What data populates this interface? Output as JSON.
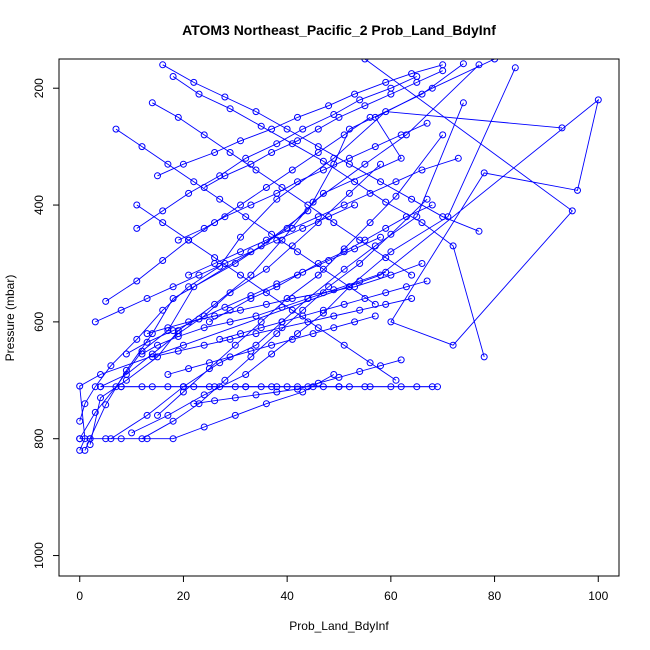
{
  "chart_data": {
    "type": "line",
    "title": "ATOM3 Northeast_Pacific_2 Prob_Land_BdyInf",
    "xlabel": "Prob_Land_BdyInf",
    "ylabel": "Pressure (mbar)",
    "xlim": [
      -4,
      104
    ],
    "ylim": [
      1035,
      150
    ],
    "y_reversed": true,
    "grid": false,
    "legend": "none",
    "x_ticks": [
      0,
      20,
      40,
      60,
      80,
      100
    ],
    "x_tick_labels": [
      "0",
      "20",
      "40",
      "60",
      "80",
      "100"
    ],
    "y_ticks": [
      200,
      400,
      600,
      800,
      1000
    ],
    "y_tick_labels": [
      "200",
      "400",
      "600",
      "800",
      "1000"
    ],
    "color": "#0000ff",
    "marker": "open-circle",
    "series": [
      {
        "x": [
          0,
          1,
          0,
          4,
          20,
          58,
          100,
          96,
          78,
          60,
          72,
          95,
          55
        ],
        "y": [
          820,
          800,
          710,
          690,
          640,
          520,
          220,
          375,
          345,
          600,
          640,
          410,
          150
        ]
      },
      {
        "x": [
          1,
          2,
          5,
          9,
          14,
          18,
          30,
          40,
          47,
          62,
          57,
          68,
          80
        ],
        "y": [
          820,
          800,
          742,
          683,
          620,
          560,
          500,
          440,
          380,
          320,
          250,
          200,
          150
        ]
      },
      {
        "x": [
          0,
          3,
          7,
          12,
          17,
          22,
          35,
          44,
          49,
          52,
          66,
          74
        ],
        "y": [
          800,
          755,
          711,
          650,
          615,
          540,
          470,
          410,
          330,
          270,
          210,
          158
        ]
      },
      {
        "x": [
          2,
          4,
          9,
          15,
          19,
          26,
          33,
          39,
          45,
          55,
          63,
          77
        ],
        "y": [
          810,
          730,
          700,
          660,
          615,
          570,
          520,
          460,
          395,
          330,
          280,
          160
        ]
      },
      {
        "x": [
          0,
          1,
          3,
          6,
          11,
          16,
          21,
          27,
          31,
          38,
          49,
          59,
          93
        ],
        "y": [
          770,
          740,
          711,
          675,
          630,
          580,
          540,
          505,
          455,
          390,
          320,
          240,
          268
        ]
      },
      {
        "x": [
          10,
          17,
          24,
          32,
          37,
          42,
          47,
          52,
          60,
          71,
          84
        ],
        "y": [
          790,
          760,
          725,
          690,
          655,
          620,
          585,
          540,
          480,
          420,
          165
        ]
      },
      {
        "x": [
          6,
          13,
          20,
          27,
          34,
          39,
          44,
          51,
          57,
          65,
          74
        ],
        "y": [
          800,
          760,
          711,
          670,
          640,
          600,
          560,
          510,
          470,
          420,
          225
        ]
      },
      {
        "x": [
          12,
          18,
          23,
          28,
          33,
          38,
          43,
          48,
          54,
          60,
          67
        ],
        "y": [
          800,
          770,
          740,
          700,
          660,
          620,
          580,
          540,
          500,
          450,
          390
        ]
      },
      {
        "x": [
          15,
          20,
          25,
          30,
          35,
          40,
          46,
          51,
          56,
          61,
          70
        ],
        "y": [
          760,
          720,
          680,
          640,
          600,
          560,
          520,
          475,
          430,
          385,
          280
        ]
      },
      {
        "x": [
          4,
          9,
          14,
          19,
          24,
          29,
          36,
          41,
          46,
          52,
          58
        ],
        "y": [
          711,
          690,
          655,
          620,
          590,
          550,
          510,
          470,
          430,
          380,
          330
        ]
      },
      {
        "x": [
          3,
          8,
          13,
          18,
          23,
          28,
          33,
          38,
          43,
          48,
          53
        ],
        "y": [
          600,
          580,
          560,
          540,
          520,
          500,
          480,
          460,
          440,
          420,
          400
        ]
      },
      {
        "x": [
          5,
          11,
          16,
          21,
          26,
          31,
          36,
          41,
          46,
          51,
          56
        ],
        "y": [
          565,
          530,
          495,
          460,
          430,
          400,
          370,
          340,
          310,
          280,
          250
        ]
      },
      {
        "x": [
          7,
          12,
          17,
          22,
          27,
          32,
          37,
          42,
          47,
          52,
          57
        ],
        "y": [
          270,
          300,
          330,
          360,
          390,
          420,
          450,
          480,
          510,
          540,
          570
        ]
      },
      {
        "x": [
          11,
          16,
          21,
          26,
          31,
          36,
          41,
          46,
          51,
          56,
          61
        ],
        "y": [
          400,
          430,
          460,
          490,
          520,
          550,
          580,
          610,
          640,
          670,
          700
        ]
      },
      {
        "x": [
          14,
          19,
          24,
          29,
          34,
          39,
          44,
          49,
          54,
          59,
          64
        ],
        "y": [
          225,
          250,
          280,
          310,
          340,
          370,
          400,
          430,
          460,
          490,
          520
        ]
      },
      {
        "x": [
          16,
          22,
          28,
          34,
          40,
          46,
          52,
          58,
          64,
          70,
          77
        ],
        "y": [
          160,
          190,
          215,
          240,
          270,
          300,
          330,
          360,
          390,
          420,
          445
        ]
      },
      {
        "x": [
          18,
          23,
          29,
          35,
          41,
          47,
          53,
          59,
          66,
          72,
          78
        ],
        "y": [
          180,
          210,
          235,
          265,
          295,
          325,
          360,
          395,
          430,
          470,
          660
        ]
      },
      {
        "x": [
          20,
          25,
          30,
          35,
          40,
          45,
          50,
          55,
          60,
          65,
          69
        ],
        "y": [
          711,
          711,
          711,
          711,
          711,
          711,
          711,
          711,
          711,
          711,
          711
        ]
      },
      {
        "x": [
          8,
          14,
          20,
          26,
          32,
          38,
          44,
          50,
          56,
          62,
          68
        ],
        "y": [
          711,
          711,
          711,
          711,
          711,
          711,
          711,
          711,
          711,
          711,
          711
        ]
      },
      {
        "x": [
          4,
          8,
          12,
          17,
          22,
          27,
          32,
          37,
          42,
          47,
          52
        ],
        "y": [
          711,
          711,
          711,
          711,
          711,
          711,
          711,
          711,
          711,
          711,
          711
        ]
      },
      {
        "x": [
          0,
          2,
          5,
          8,
          13,
          18,
          24,
          30,
          36,
          43,
          49
        ],
        "y": [
          800,
          800,
          800,
          800,
          800,
          800,
          780,
          760,
          740,
          720,
          690
        ]
      },
      {
        "x": [
          9,
          13,
          18,
          23,
          28,
          33,
          38,
          43,
          48,
          53,
          58
        ],
        "y": [
          655,
          635,
          615,
          595,
          575,
          555,
          535,
          515,
          495,
          475,
          455
        ]
      },
      {
        "x": [
          12,
          15,
          19,
          24,
          29,
          34,
          39,
          44,
          49,
          54,
          59
        ],
        "y": [
          655,
          640,
          625,
          610,
          600,
          590,
          575,
          560,
          545,
          530,
          515
        ]
      },
      {
        "x": [
          13,
          17,
          21,
          26,
          31,
          36,
          41,
          47,
          53,
          60,
          66
        ],
        "y": [
          620,
          610,
          600,
          590,
          580,
          570,
          560,
          550,
          540,
          520,
          500
        ]
      },
      {
        "x": [
          14,
          19,
          24,
          29,
          34,
          39,
          44,
          49,
          54,
          59,
          64
        ],
        "y": [
          660,
          650,
          640,
          630,
          620,
          610,
          600,
          590,
          580,
          570,
          560
        ]
      },
      {
        "x": [
          17,
          21,
          25,
          29,
          33,
          37,
          41,
          45,
          49,
          53,
          57
        ],
        "y": [
          690,
          680,
          670,
          660,
          650,
          640,
          630,
          620,
          610,
          600,
          590
        ]
      },
      {
        "x": [
          22,
          26,
          30,
          34,
          38,
          42,
          46,
          50,
          54,
          58,
          62
        ],
        "y": [
          740,
          735,
          730,
          725,
          720,
          715,
          705,
          695,
          685,
          675,
          665
        ]
      },
      {
        "x": [
          19,
          24,
          28,
          33,
          38,
          42,
          47,
          52,
          57,
          62,
          67
        ],
        "y": [
          460,
          440,
          420,
          400,
          380,
          360,
          340,
          320,
          300,
          280,
          260
        ]
      },
      {
        "x": [
          21,
          26,
          31,
          36,
          41,
          46,
          51,
          56,
          61,
          66,
          73
        ],
        "y": [
          520,
          500,
          480,
          460,
          440,
          420,
          400,
          380,
          360,
          340,
          320
        ]
      },
      {
        "x": [
          24,
          28,
          33,
          37,
          42,
          46,
          50,
          55,
          60,
          65,
          70
        ],
        "y": [
          370,
          350,
          330,
          310,
          290,
          270,
          250,
          230,
          210,
          190,
          170
        ]
      },
      {
        "x": [
          15,
          20,
          26,
          31,
          37,
          42,
          48,
          53,
          59,
          64,
          70
        ],
        "y": [
          350,
          330,
          310,
          290,
          270,
          250,
          230,
          210,
          190,
          175,
          160
        ]
      },
      {
        "x": [
          11,
          16,
          21,
          27,
          32,
          38,
          43,
          49,
          54,
          60,
          65
        ],
        "y": [
          440,
          410,
          380,
          350,
          320,
          295,
          270,
          245,
          220,
          200,
          180
        ]
      },
      {
        "x": [
          25,
          29,
          33,
          38,
          42,
          46,
          51,
          55,
          59,
          63,
          68
        ],
        "y": [
          600,
          580,
          560,
          540,
          520,
          500,
          480,
          460,
          440,
          420,
          400
        ]
      },
      {
        "x": [
          27,
          31,
          35,
          39,
          43,
          47,
          51,
          55,
          59,
          63,
          67
        ],
        "y": [
          630,
          620,
          610,
          600,
          590,
          580,
          570,
          560,
          550,
          540,
          530
        ]
      }
    ]
  }
}
